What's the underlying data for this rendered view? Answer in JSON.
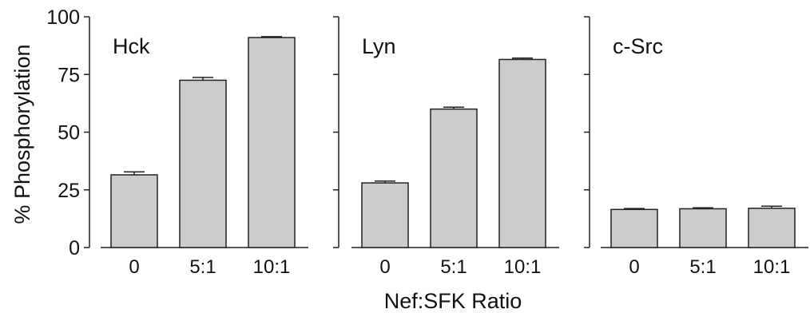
{
  "figure": {
    "ylabel": "% Phosphorylation",
    "xlabel": "Nef:SFK Ratio"
  },
  "style": {
    "bar_fill": "#cccccc",
    "bar_stroke": "#222222",
    "axis_color": "#222222"
  },
  "chart_data": [
    {
      "type": "bar",
      "title": "Hck",
      "categories": [
        "0",
        "5:1",
        "10:1"
      ],
      "values": [
        31.5,
        72.5,
        91
      ],
      "error": [
        1.3,
        1.2,
        0.4
      ],
      "ylim": [
        0,
        100
      ],
      "yticks": [
        0,
        25,
        50,
        75,
        100
      ],
      "ylabel": "% Phosphorylation",
      "xlabel": "Nef:SFK Ratio"
    },
    {
      "type": "bar",
      "title": "Lyn",
      "categories": [
        "0",
        "5:1",
        "10:1"
      ],
      "values": [
        28,
        60,
        81.5
      ],
      "error": [
        0.8,
        0.8,
        0.6
      ],
      "ylim": [
        0,
        100
      ],
      "xlabel": "Nef:SFK Ratio"
    },
    {
      "type": "bar",
      "title": "c-Src",
      "categories": [
        "0",
        "5:1",
        "10:1"
      ],
      "values": [
        16.5,
        16.8,
        17
      ],
      "error": [
        0.4,
        0.4,
        0.9
      ],
      "ylim": [
        0,
        100
      ],
      "xlabel": "Nef:SFK Ratio"
    }
  ]
}
